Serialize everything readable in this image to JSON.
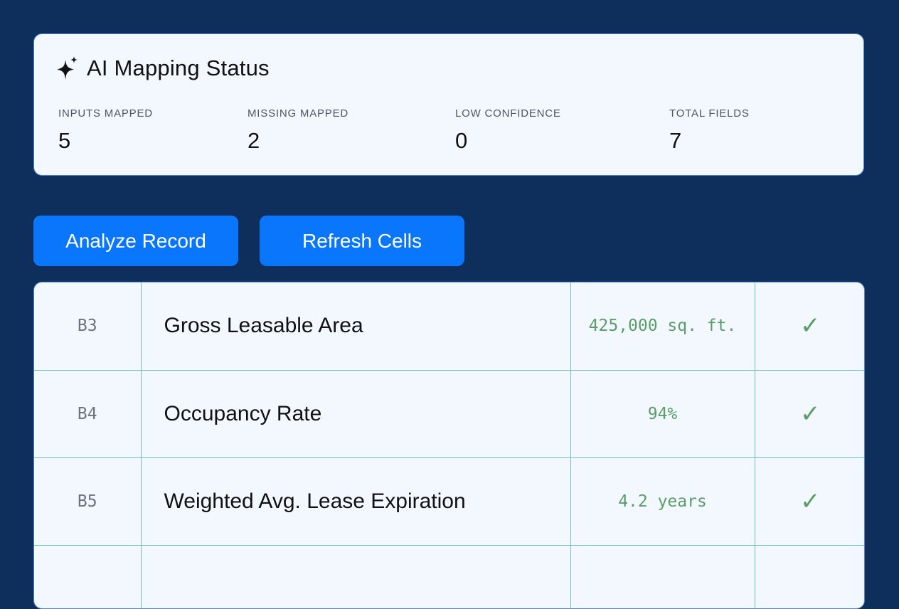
{
  "status": {
    "title": "AI Mapping Status",
    "icon": "sparkle-icon",
    "stats": [
      {
        "label": "INPUTS MAPPED",
        "value": "5"
      },
      {
        "label": "MISSING MAPPED",
        "value": "2"
      },
      {
        "label": "LOW CONFIDENCE",
        "value": "0"
      },
      {
        "label": "TOTAL FIELDS",
        "value": "7"
      }
    ]
  },
  "actions": {
    "analyze_label": "Analyze Record",
    "refresh_label": "Refresh Cells"
  },
  "rows": [
    {
      "cell": "B3",
      "label": "Gross Leasable Area",
      "value": "425,000 sq. ft.",
      "check": "✓"
    },
    {
      "cell": "B4",
      "label": "Occupancy Rate",
      "value": "94%",
      "check": "✓"
    },
    {
      "cell": "B5",
      "label": "Weighted Avg. Lease Expiration",
      "value": "4.2 years",
      "check": "✓"
    },
    {
      "cell": "",
      "label": "",
      "value": "",
      "check": ""
    }
  ],
  "colors": {
    "background": "#0e2f5c",
    "card": "#f3f7fe",
    "button": "#0a76fb",
    "success": "#5a9e67"
  }
}
